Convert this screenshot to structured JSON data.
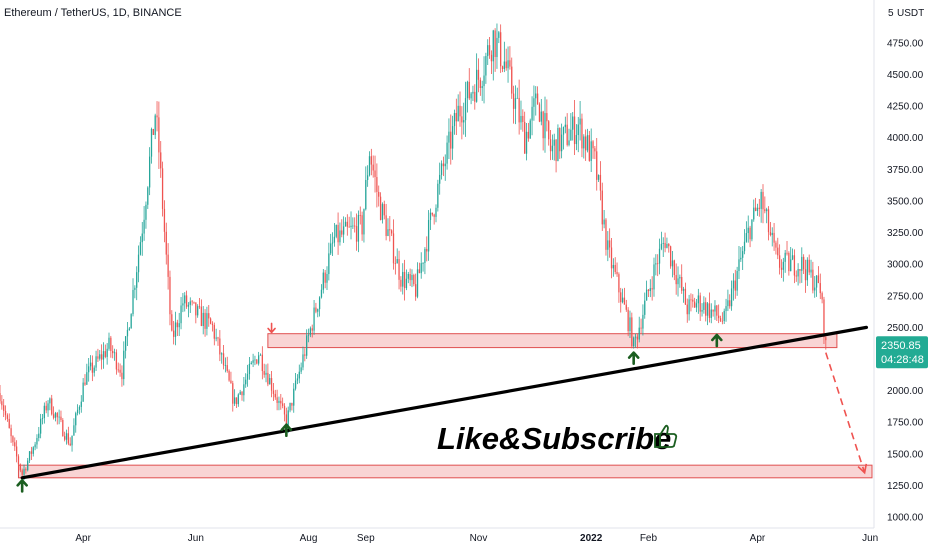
{
  "header": {
    "symbol_title": "Ethereum / TetherUS, 1D, BINANCE",
    "currency": "USDT"
  },
  "price_badge": {
    "price": "2350.85",
    "countdown": "04:28:48",
    "color": "#22ab94"
  },
  "annotation": {
    "text": "Like&Subscribe",
    "icon": "thumbs-up-icon"
  },
  "colors": {
    "up": "#26a69a",
    "down": "#ef5350",
    "zone_fill": "#f7c5c5",
    "zone_stroke": "#e05050",
    "trendline": "#000000",
    "arrow_up": "#1b5e20"
  },
  "chart_data": {
    "type": "candlestick",
    "x_range": [
      "2021-02-15",
      "2022-06-02"
    ],
    "x_ticks": [
      {
        "label": "Apr",
        "date": "2021-04-01"
      },
      {
        "label": "Jun",
        "date": "2021-06-01"
      },
      {
        "label": "Aug",
        "date": "2021-08-01"
      },
      {
        "label": "Sep",
        "date": "2021-09-01"
      },
      {
        "label": "Nov",
        "date": "2021-11-01"
      },
      {
        "label": "2022",
        "date": "2022-01-01"
      },
      {
        "label": "Feb",
        "date": "2022-02-01"
      },
      {
        "label": "Apr",
        "date": "2022-04-01"
      },
      {
        "label": "Jun",
        "date": "2022-06-01"
      }
    ],
    "ylim": [
      1000,
      5050
    ],
    "y_ticks": [
      "1000.00",
      "1250.00",
      "1500.00",
      "1750.00",
      "2000.00",
      "2250.00",
      "2500.00",
      "2750.00",
      "3000.00",
      "3250.00",
      "3500.00",
      "3750.00",
      "4000.00",
      "4250.00",
      "4500.00",
      "4750.00"
    ],
    "y_top_label": "5",
    "price_path": [
      [
        "2021-02-15",
        1980
      ],
      [
        "2021-02-22",
        1560
      ],
      [
        "2021-02-27",
        1340
      ],
      [
        "2021-03-05",
        1550
      ],
      [
        "2021-03-13",
        1920
      ],
      [
        "2021-03-25",
        1580
      ],
      [
        "2021-04-02",
        2100
      ],
      [
        "2021-04-15",
        2350
      ],
      [
        "2021-04-22",
        2150
      ],
      [
        "2021-05-03",
        3300
      ],
      [
        "2021-05-10",
        4200
      ],
      [
        "2021-05-12",
        3900
      ],
      [
        "2021-05-19",
        2400
      ],
      [
        "2021-05-25",
        2700
      ],
      [
        "2021-06-02",
        2600
      ],
      [
        "2021-06-10",
        2500
      ],
      [
        "2021-06-22",
        1900
      ],
      [
        "2021-07-05",
        2300
      ],
      [
        "2021-07-20",
        1750
      ],
      [
        "2021-08-05",
        2650
      ],
      [
        "2021-08-15",
        3200
      ],
      [
        "2021-08-30",
        3300
      ],
      [
        "2021-09-03",
        3900
      ],
      [
        "2021-09-08",
        3500
      ],
      [
        "2021-09-20",
        2900
      ],
      [
        "2021-09-28",
        2800
      ],
      [
        "2021-10-10",
        3600
      ],
      [
        "2021-10-21",
        4200
      ],
      [
        "2021-11-02",
        4500
      ],
      [
        "2021-11-09",
        4800
      ],
      [
        "2021-11-15",
        4600
      ],
      [
        "2021-11-26",
        4000
      ],
      [
        "2021-12-03",
        4300
      ],
      [
        "2021-12-10",
        3900
      ],
      [
        "2021-12-25",
        4100
      ],
      [
        "2022-01-03",
        3800
      ],
      [
        "2022-01-10",
        3100
      ],
      [
        "2022-01-22",
        2500
      ],
      [
        "2022-01-24",
        2350
      ],
      [
        "2022-02-05",
        3000
      ],
      [
        "2022-02-10",
        3200
      ],
      [
        "2022-02-22",
        2650
      ],
      [
        "2022-02-28",
        2700
      ],
      [
        "2022-03-14",
        2550
      ],
      [
        "2022-03-28",
        3300
      ],
      [
        "2022-04-03",
        3500
      ],
      [
        "2022-04-12",
        3000
      ],
      [
        "2022-04-25",
        3000
      ],
      [
        "2022-05-05",
        2800
      ],
      [
        "2022-05-08",
        2350
      ]
    ],
    "support_zones": [
      {
        "x_start": "2021-07-10",
        "x_end": "2022-05-14",
        "y_low": 2340,
        "y_high": 2450
      },
      {
        "x_start": "2021-02-25",
        "x_end": "2022-06-02",
        "y_low": 1310,
        "y_high": 1410
      }
    ],
    "trendline": {
      "from": [
        "2021-02-27",
        1310
      ],
      "to": [
        "2022-05-30",
        2500
      ]
    },
    "projection": {
      "from": [
        "2022-05-08",
        2300
      ],
      "to": [
        "2022-05-29",
        1350
      ]
    },
    "up_arrows": [
      {
        "date": "2021-02-27",
        "price": 1290
      },
      {
        "date": "2021-07-20",
        "price": 1730
      },
      {
        "date": "2022-01-24",
        "price": 2300
      },
      {
        "date": "2022-03-10",
        "price": 2440
      }
    ],
    "down_arrows": [
      {
        "date": "2021-07-12",
        "price": 2460
      }
    ],
    "grid": false,
    "legend": "none"
  }
}
